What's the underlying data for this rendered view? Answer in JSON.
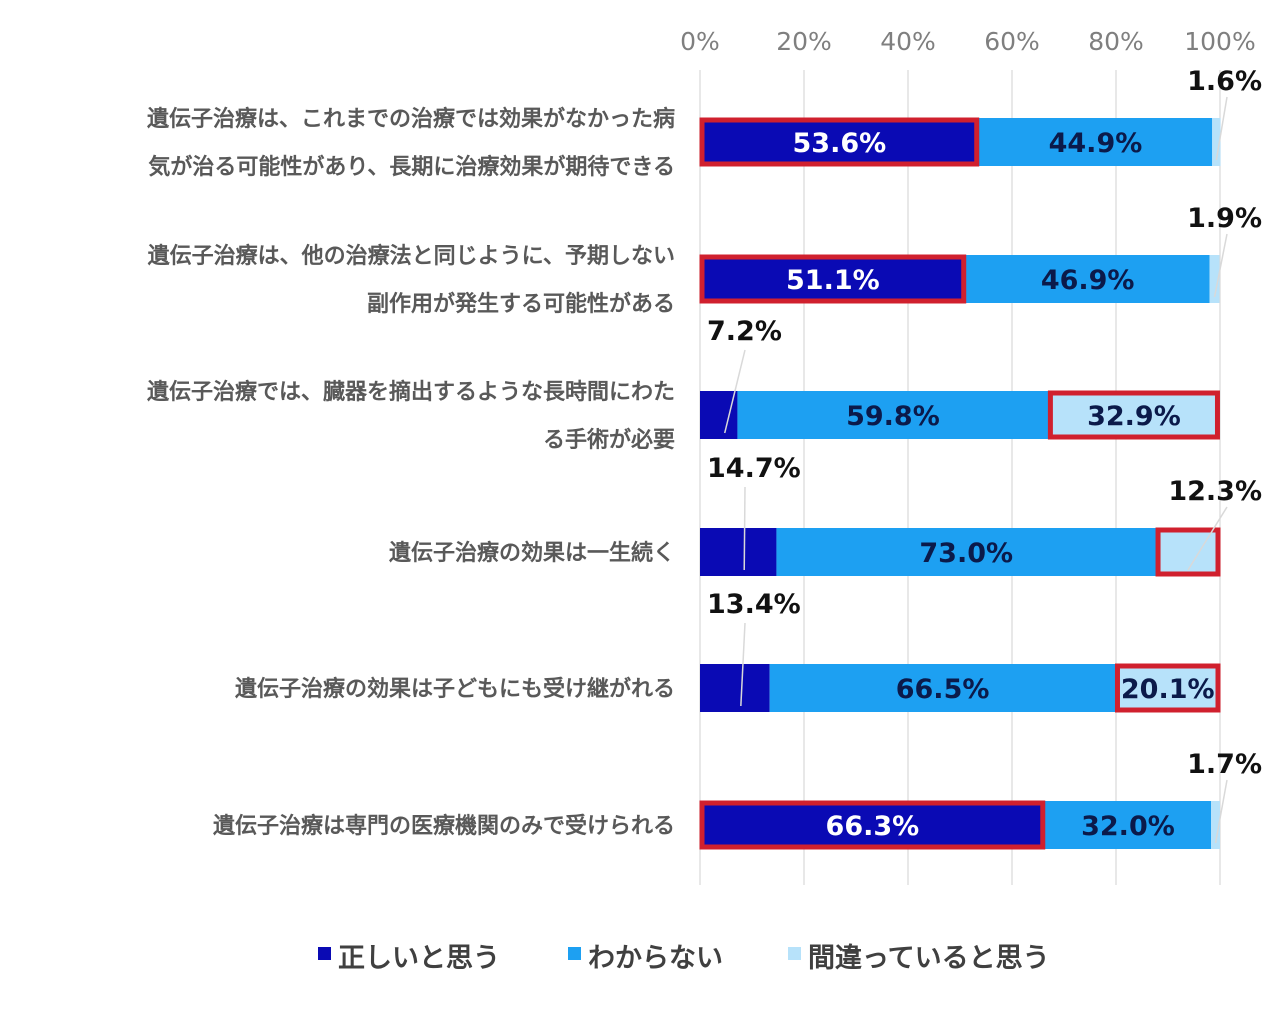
{
  "chart_data": {
    "type": "bar",
    "stacked": true,
    "orientation": "horizontal",
    "xlim": [
      0,
      100
    ],
    "x_ticks": [
      "0%",
      "20%",
      "40%",
      "60%",
      "80%",
      "100%"
    ],
    "grid": true,
    "legend_position": "bottom",
    "categories": [
      [
        "遺伝子治療は、これまでの治療では効果がなかった病",
        "気が治る可能性があり、長期に治療効果が期待できる"
      ],
      [
        "遺伝子治療は、他の治療法と同じように、予期しない",
        "副作用が発生する可能性がある"
      ],
      [
        "遺伝子治療では、臓器を摘出するような長時間にわた",
        "る手術が必要"
      ],
      [
        "遺伝子治療の効果は一生続く"
      ],
      [
        "遺伝子治療の効果は子どもにも受け継がれる"
      ],
      [
        "遺伝子治療は専門の医療機関のみで受けられる"
      ]
    ],
    "series": [
      {
        "name": "正しいと思う",
        "color": "#0a0ab4",
        "values": [
          53.6,
          51.1,
          7.2,
          14.7,
          13.4,
          66.3
        ],
        "labels": [
          "53.6%",
          "51.1%",
          "7.2%",
          "14.7%",
          "13.4%",
          "66.3%"
        ]
      },
      {
        "name": "わからない",
        "color": "#1da0f2",
        "values": [
          44.9,
          46.9,
          59.8,
          73.0,
          66.5,
          32.0
        ],
        "labels": [
          "44.9%",
          "46.9%",
          "59.8%",
          "73.0%",
          "66.5%",
          "32.0%"
        ]
      },
      {
        "name": "間違っていると思う",
        "color": "#b7e2fa",
        "values": [
          1.6,
          1.9,
          32.9,
          12.3,
          20.1,
          1.7
        ],
        "labels": [
          "1.6%",
          "1.9%",
          "32.9%",
          "12.3%",
          "20.1%",
          "1.7%"
        ]
      }
    ],
    "highlight_color": "#d0202e",
    "highlights": [
      {
        "row": 0,
        "series": 0
      },
      {
        "row": 1,
        "series": 0
      },
      {
        "row": 2,
        "series": 2
      },
      {
        "row": 3,
        "series": 2
      },
      {
        "row": 4,
        "series": 2
      },
      {
        "row": 5,
        "series": 0
      }
    ]
  }
}
